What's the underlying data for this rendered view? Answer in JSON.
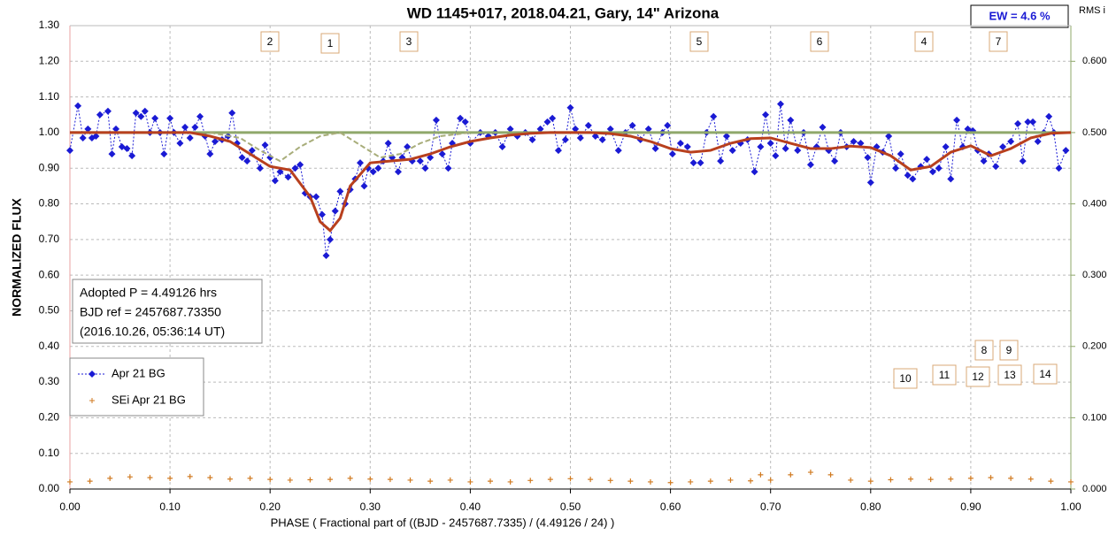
{
  "chart_data": {
    "type": "line",
    "title": "WD 1145+017, 2018.04.21, Gary, 14\" Arizona",
    "ew_label": "EW =  4.6 %",
    "y2_label": "RMS i",
    "xlabel": "PHASE  ( Fractional part of ((BJD - 2457687.7335)  / (4.49126  / 24) )",
    "ylabel": "NORMALIZED  FLUX",
    "info": [
      "Adopted P = 4.49126 hrs",
      "BJD ref = 2457687.73350",
      "(2016.10.26, 05:36:14 UT)"
    ],
    "annotations": [
      "2",
      "1",
      "3",
      "5",
      "6",
      "4",
      "7",
      "8",
      "9",
      "10",
      "11",
      "12",
      "13",
      "14"
    ],
    "grid": true,
    "xlim": [
      0,
      1
    ],
    "xticks": [
      {
        "value": 0,
        "label": "0.00"
      },
      {
        "value": 0.1,
        "label": "0.10"
      },
      {
        "value": 0.2,
        "label": "0.20"
      },
      {
        "value": 0.3,
        "label": "0.30"
      },
      {
        "value": 0.4,
        "label": "0.40"
      },
      {
        "value": 0.5,
        "label": "0.50"
      },
      {
        "value": 0.6,
        "label": "0.60"
      },
      {
        "value": 0.7,
        "label": "0.70"
      },
      {
        "value": 0.8,
        "label": "0.80"
      },
      {
        "value": 0.9,
        "label": "0.90"
      },
      {
        "value": 1,
        "label": "1.00"
      }
    ],
    "ylim": [
      0,
      1.3
    ],
    "yticks": [
      {
        "value": 0,
        "label": "0.00"
      },
      {
        "value": 0.1,
        "label": "0.10"
      },
      {
        "value": 0.2,
        "label": "0.20"
      },
      {
        "value": 0.3,
        "label": "0.30"
      },
      {
        "value": 0.4,
        "label": "0.40"
      },
      {
        "value": 0.5,
        "label": "0.50"
      },
      {
        "value": 0.6,
        "label": "0.60"
      },
      {
        "value": 0.7,
        "label": "0.70"
      },
      {
        "value": 0.8,
        "label": "0.80"
      },
      {
        "value": 0.9,
        "label": "0.90"
      },
      {
        "value": 1,
        "label": "1.00"
      },
      {
        "value": 1.1,
        "label": "1.10"
      },
      {
        "value": 1.2,
        "label": "1.20"
      },
      {
        "value": 1.3,
        "label": "1.30"
      }
    ],
    "y2lim": [
      0,
      0.65
    ],
    "y2ticks": [
      {
        "value": 0,
        "label": "0.000"
      },
      {
        "value": 0.1,
        "label": "0.100"
      },
      {
        "value": 0.2,
        "label": "0.200"
      },
      {
        "value": 0.3,
        "label": "0.300"
      },
      {
        "value": 0.4,
        "label": "0.400"
      },
      {
        "value": 0.5,
        "label": "0.500"
      },
      {
        "value": 0.6,
        "label": "0.600"
      }
    ],
    "series": [
      {
        "name": "Apr 21 BG",
        "color": "#1a1ad4",
        "marker": "diamond",
        "line": "dotted",
        "x": [
          0,
          0.008,
          0.013,
          0.018,
          0.022,
          0.026,
          0.03,
          0.038,
          0.042,
          0.046,
          0.052,
          0.057,
          0.062,
          0.066,
          0.071,
          0.075,
          0.08,
          0.085,
          0.09,
          0.094,
          0.1,
          0.104,
          0.11,
          0.115,
          0.12,
          0.125,
          0.13,
          0.135,
          0.14,
          0.145,
          0.152,
          0.158,
          0.162,
          0.167,
          0.172,
          0.177,
          0.182,
          0.19,
          0.195,
          0.2,
          0.205,
          0.21,
          0.218,
          0.225,
          0.23,
          0.235,
          0.24,
          0.246,
          0.252,
          0.256,
          0.26,
          0.265,
          0.27,
          0.275,
          0.28,
          0.285,
          0.29,
          0.294,
          0.298,
          0.303,
          0.308,
          0.313,
          0.318,
          0.322,
          0.328,
          0.332,
          0.337,
          0.342,
          0.35,
          0.355,
          0.36,
          0.366,
          0.372,
          0.378,
          0.382,
          0.39,
          0.395,
          0.4,
          0.41,
          0.418,
          0.425,
          0.432,
          0.44,
          0.447,
          0.455,
          0.462,
          0.47,
          0.477,
          0.482,
          0.488,
          0.495,
          0.5,
          0.505,
          0.51,
          0.518,
          0.525,
          0.532,
          0.54,
          0.548,
          0.555,
          0.562,
          0.57,
          0.578,
          0.585,
          0.592,
          0.597,
          0.602,
          0.61,
          0.617,
          0.623,
          0.63,
          0.636,
          0.643,
          0.65,
          0.656,
          0.662,
          0.67,
          0.677,
          0.684,
          0.69,
          0.695,
          0.7,
          0.705,
          0.71,
          0.715,
          0.72,
          0.727,
          0.733,
          0.74,
          0.746,
          0.752,
          0.758,
          0.764,
          0.77,
          0.776,
          0.783,
          0.79,
          0.797,
          0.8,
          0.806,
          0.812,
          0.818,
          0.825,
          0.83,
          0.837,
          0.842,
          0.85,
          0.856,
          0.862,
          0.868,
          0.875,
          0.88,
          0.886,
          0.892,
          0.897,
          0.902,
          0.907,
          0.913,
          0.918,
          0.925,
          0.932,
          0.94,
          0.947,
          0.952,
          0.957,
          0.962,
          0.967,
          0.973,
          0.978,
          0.983,
          0.988,
          0.995
        ],
        "values": [
          0.95,
          1.075,
          0.985,
          1.01,
          0.985,
          0.99,
          1.05,
          1.06,
          0.94,
          1.01,
          0.96,
          0.955,
          0.935,
          1.055,
          1.045,
          1.06,
          1.0,
          1.04,
          1.0,
          0.94,
          1.04,
          1.0,
          0.97,
          1.015,
          0.985,
          1.015,
          1.045,
          0.99,
          0.94,
          0.975,
          0.98,
          0.99,
          1.055,
          0.97,
          0.93,
          0.92,
          0.95,
          0.9,
          0.965,
          0.93,
          0.865,
          0.89,
          0.875,
          0.9,
          0.91,
          0.83,
          0.82,
          0.82,
          0.77,
          0.655,
          0.7,
          0.78,
          0.835,
          0.8,
          0.84,
          0.87,
          0.915,
          0.85,
          0.9,
          0.89,
          0.9,
          0.92,
          0.97,
          0.93,
          0.89,
          0.93,
          0.96,
          0.92,
          0.92,
          0.9,
          0.93,
          1.035,
          0.94,
          0.9,
          0.97,
          1.04,
          1.03,
          0.97,
          1.0,
          0.99,
          1.0,
          0.96,
          1.01,
          0.99,
          1.0,
          0.98,
          1.01,
          1.03,
          1.04,
          0.95,
          0.98,
          1.07,
          1.01,
          0.985,
          1.02,
          0.99,
          0.98,
          1.01,
          0.95,
          1.0,
          1.02,
          0.98,
          1.01,
          0.955,
          1.0,
          1.02,
          0.94,
          0.97,
          0.96,
          0.915,
          0.915,
          1.0,
          1.045,
          0.92,
          0.99,
          0.95,
          0.97,
          0.98,
          0.89,
          0.96,
          1.05,
          0.97,
          0.935,
          1.08,
          0.955,
          1.035,
          0.95,
          1.0,
          0.91,
          0.96,
          1.015,
          0.95,
          0.92,
          1.0,
          0.96,
          0.975,
          0.97,
          0.93,
          0.86,
          0.96,
          0.945,
          0.99,
          0.9,
          0.94,
          0.88,
          0.87,
          0.905,
          0.925,
          0.89,
          0.9,
          0.96,
          0.87,
          1.035,
          0.96,
          1.01,
          1.005,
          0.95,
          0.92,
          0.94,
          0.905,
          0.96,
          0.975,
          1.025,
          0.92,
          1.03,
          1.03,
          0.975,
          1.0,
          1.045,
          1.0,
          0.9,
          0.95
        ]
      },
      {
        "name": "SEi Apr 21 BG",
        "color": "#d07a20",
        "marker": "plus",
        "line": "none",
        "x": [
          0,
          0.02,
          0.04,
          0.06,
          0.08,
          0.1,
          0.12,
          0.14,
          0.16,
          0.18,
          0.2,
          0.22,
          0.24,
          0.26,
          0.28,
          0.3,
          0.32,
          0.34,
          0.36,
          0.38,
          0.4,
          0.42,
          0.44,
          0.46,
          0.48,
          0.5,
          0.52,
          0.54,
          0.56,
          0.58,
          0.6,
          0.62,
          0.64,
          0.66,
          0.68,
          0.69,
          0.7,
          0.72,
          0.74,
          0.76,
          0.78,
          0.8,
          0.82,
          0.84,
          0.86,
          0.88,
          0.9,
          0.92,
          0.94,
          0.96,
          0.98,
          1
        ],
        "values": [
          0.02,
          0.022,
          0.03,
          0.034,
          0.032,
          0.03,
          0.035,
          0.032,
          0.028,
          0.03,
          0.027,
          0.025,
          0.026,
          0.027,
          0.03,
          0.028,
          0.027,
          0.025,
          0.022,
          0.025,
          0.02,
          0.022,
          0.02,
          0.024,
          0.027,
          0.029,
          0.027,
          0.024,
          0.022,
          0.02,
          0.018,
          0.02,
          0.022,
          0.025,
          0.023,
          0.04,
          0.025,
          0.04,
          0.047,
          0.04,
          0.025,
          0.022,
          0.026,
          0.028,
          0.027,
          0.028,
          0.03,
          0.032,
          0.03,
          0.028,
          0.022,
          0.02
        ]
      },
      {
        "color": "#8fa86a",
        "marker": "none",
        "line": "solid",
        "width": 3,
        "x": [
          0,
          1
        ],
        "values": [
          1,
          1
        ]
      },
      {
        "color": "#a8ad7a",
        "marker": "none",
        "line": "dashed",
        "width": 2,
        "x": [
          0.14,
          0.17,
          0.19,
          0.21,
          0.23,
          0.25,
          0.27
        ],
        "values": [
          1,
          0.985,
          0.95,
          0.92,
          0.96,
          0.99,
          1
        ]
      },
      {
        "color": "#a8ad7a",
        "marker": "none",
        "line": "dashed",
        "width": 2,
        "x": [
          0.27,
          0.29,
          0.31,
          0.33,
          0.35,
          0.37,
          0.4
        ],
        "values": [
          1,
          0.965,
          0.93,
          0.94,
          0.97,
          0.99,
          1
        ]
      },
      {
        "color": "#b8401e",
        "marker": "none",
        "line": "solid",
        "width": 3,
        "x": [
          0,
          0.02,
          0.04,
          0.06,
          0.08,
          0.1,
          0.12,
          0.14,
          0.16,
          0.18,
          0.2,
          0.22,
          0.24,
          0.25,
          0.26,
          0.27,
          0.28,
          0.3,
          0.32,
          0.34,
          0.36,
          0.38,
          0.4,
          0.42,
          0.44,
          0.46,
          0.48,
          0.5,
          0.52,
          0.54,
          0.56,
          0.58,
          0.6,
          0.62,
          0.64,
          0.66,
          0.68,
          0.7,
          0.72,
          0.74,
          0.76,
          0.78,
          0.8,
          0.82,
          0.84,
          0.86,
          0.88,
          0.9,
          0.92,
          0.94,
          0.96,
          0.98,
          1
        ],
        "values": [
          1,
          1,
          1,
          1,
          1,
          1,
          1,
          0.99,
          0.975,
          0.94,
          0.905,
          0.895,
          0.82,
          0.75,
          0.725,
          0.76,
          0.85,
          0.915,
          0.92,
          0.925,
          0.94,
          0.96,
          0.975,
          0.985,
          0.993,
          0.998,
          1,
          1,
          1,
          0.997,
          0.99,
          0.975,
          0.955,
          0.945,
          0.95,
          0.97,
          0.983,
          0.985,
          0.97,
          0.955,
          0.955,
          0.962,
          0.958,
          0.935,
          0.895,
          0.905,
          0.945,
          0.963,
          0.935,
          0.955,
          0.985,
          0.998,
          1
        ]
      }
    ]
  }
}
